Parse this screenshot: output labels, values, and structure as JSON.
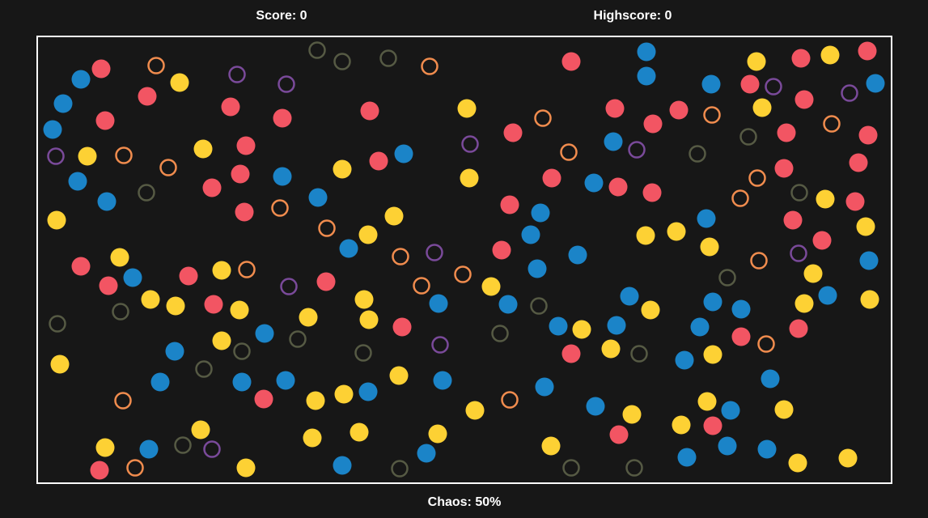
{
  "hud": {
    "score": "Score: 0",
    "highscore": "Highscore: 0",
    "chaos": "Chaos: 50%"
  },
  "colors": {
    "background": "#171717",
    "border": "#ffffff",
    "red": "#f25563",
    "blue": "#1b84c8",
    "yellow": "#fdd134",
    "orange_ring": "#f08c4e",
    "purple_ring": "#7a4a9a",
    "olive_ring": "#565a44"
  }
}
